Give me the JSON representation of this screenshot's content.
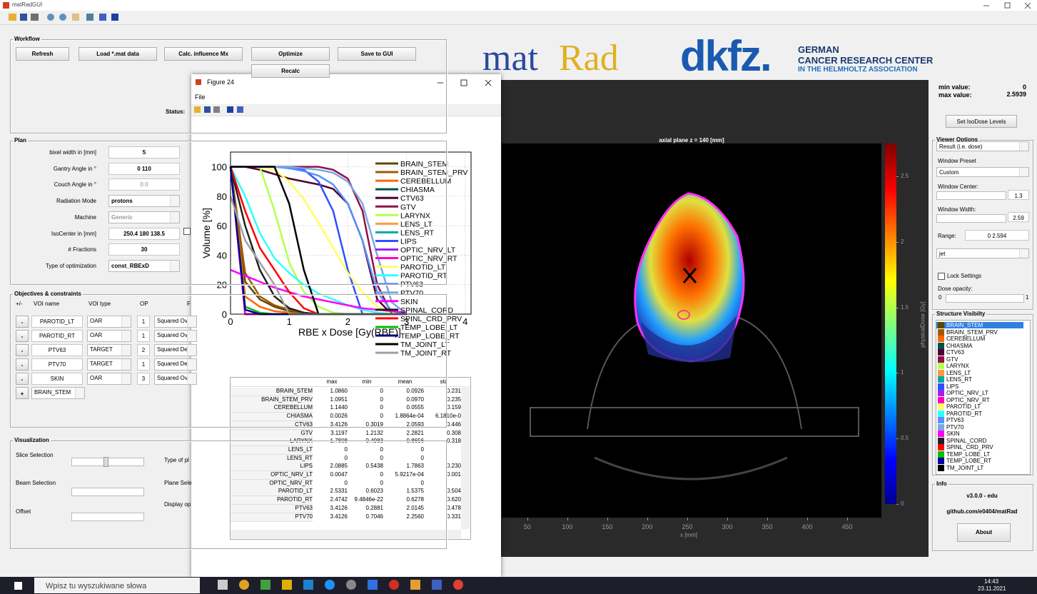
{
  "window": {
    "title": "matRadGUI"
  },
  "workflow": {
    "title": "Workflow",
    "buttons": [
      "Refresh",
      "Load *.mat data",
      "Calc. influence Mx",
      "Optimize",
      "Save to GUI",
      "Recalc"
    ],
    "status": "Status:"
  },
  "plan": {
    "title": "Plan",
    "fields": [
      {
        "label": "bixel width in [mm]",
        "value": "5"
      },
      {
        "label": "Gantry Angle in °",
        "value": "0 110"
      },
      {
        "label": "Couch Angle in °",
        "value": "0 0"
      },
      {
        "label": "Radiation Mode",
        "value": "protons"
      },
      {
        "label": "Machine",
        "value": "Generic"
      },
      {
        "label": "IsoCenter in [mm]",
        "value": "250.4 180 138.5"
      },
      {
        "label": "# Fractions",
        "value": "30"
      },
      {
        "label": "Type of optimization",
        "value": "const_RBExD"
      }
    ]
  },
  "objectives": {
    "title": "Objectives & constraints",
    "headers": [
      "+/-",
      "VOI name",
      "VOI type",
      "OP",
      "F"
    ],
    "rows": [
      [
        "-",
        "PAROTID_LT",
        "OAR",
        "1",
        "Squared Ove"
      ],
      [
        "-",
        "PAROTID_RT",
        "OAR",
        "1",
        "Squared Ove"
      ],
      [
        "-",
        "PTV63",
        "TARGET",
        "2",
        "Squared Dev"
      ],
      [
        "-",
        "PTV70",
        "TARGET",
        "1",
        "Squared Dev"
      ],
      [
        "-",
        "SKIN",
        "OAR",
        "3",
        "Squared Ove"
      ]
    ],
    "add": [
      "+",
      "BRAIN_STEM"
    ]
  },
  "visualization": {
    "title": "Visualization",
    "labels": [
      "Slice Selection",
      "Beam Selection",
      "Offset",
      "Type of pl",
      "Plane Sele",
      "Display op"
    ]
  },
  "logos": {
    "matrad_1": "mat",
    "matrad_2": "Rad",
    "dkfz": "dkfz.",
    "org_1": "GERMAN",
    "org_2": "CANCER RESEARCH CENTER",
    "org_3": "IN THE HELMHOLTZ ASSOCIATION"
  },
  "minmax": {
    "min_label": "min value:",
    "min": "0",
    "max_label": "max value:",
    "max": "2.5939",
    "button": "Set IsoDose Levels"
  },
  "viewer": {
    "title": "Viewer Options",
    "display": "Result (i.e. dose)",
    "preset_label": "Window Preset",
    "preset": "Custom",
    "center_label": "Window Center:",
    "center": "1.3",
    "width_label": "Window Width:",
    "width": "2.59",
    "range_label": "Range:",
    "range": "0   2.594",
    "colormap": "jet",
    "lock": "Lock Settings",
    "opacity_label": "Dose opacity:",
    "opacity_min": "0",
    "opacity_max": "1"
  },
  "structures": {
    "title": "Structure Visibilty"
  },
  "info": {
    "title": "Info",
    "version": "v3.0.0 - edu",
    "url": "github.com/e0404/matRad",
    "button": "About"
  },
  "image": {
    "title": "axial plane z = 140 [mm]",
    "xlabel": "x [mm]",
    "xlim": [
      18,
      491
    ],
    "xticks": [
      50,
      100,
      150,
      200,
      250,
      300,
      350,
      400,
      450
    ],
    "colorbar_label": "physicalDose [Gy]",
    "clim": [
      0,
      2.75
    ],
    "cticks": [
      0,
      0.5,
      1,
      1.5,
      2,
      2.5
    ]
  },
  "figure": {
    "title": "Figure 24",
    "menu": "File"
  },
  "chart_data": {
    "type": "line",
    "xlabel": "RBE x Dose [Gy(RBE)]",
    "ylabel": "Volume [%]",
    "xlim": [
      0,
      4.1
    ],
    "ylim": [
      0,
      110
    ],
    "xticks": [
      0,
      1,
      2,
      3,
      4
    ],
    "yticks": [
      0,
      20,
      40,
      60,
      80,
      100
    ],
    "grid": true,
    "x": [
      0,
      0.25,
      0.5,
      0.75,
      1,
      1.25,
      1.5,
      1.75,
      2,
      2.25,
      2.5,
      2.75,
      3
    ],
    "series": [
      {
        "name": "BRAIN_STEM",
        "color": "#5a4a00",
        "values": [
          100,
          22,
          10,
          5,
          2,
          1,
          0,
          0,
          0,
          0,
          0,
          0,
          0
        ]
      },
      {
        "name": "BRAIN_STEM_PRV",
        "color": "#a05a00",
        "values": [
          100,
          28,
          12,
          6,
          3,
          1,
          0,
          0,
          0,
          0,
          0,
          0,
          0
        ]
      },
      {
        "name": "CEREBELLUM",
        "color": "#ff6600",
        "values": [
          100,
          12,
          5,
          2,
          1,
          0,
          0,
          0,
          0,
          0,
          0,
          0,
          0
        ]
      },
      {
        "name": "CHIASMA",
        "color": "#00504a",
        "values": [
          100,
          0,
          0,
          0,
          0,
          0,
          0,
          0,
          0,
          0,
          0,
          0,
          0
        ]
      },
      {
        "name": "CTV63",
        "color": "#500030",
        "values": [
          100,
          100,
          98,
          95,
          92,
          90,
          88,
          85,
          75,
          50,
          10,
          0,
          0
        ]
      },
      {
        "name": "GTV",
        "color": "#90104a",
        "values": [
          100,
          100,
          100,
          100,
          100,
          100,
          100,
          98,
          92,
          70,
          20,
          0,
          0
        ]
      },
      {
        "name": "LARYNX",
        "color": "#b4ff50",
        "values": [
          100,
          100,
          100,
          70,
          35,
          15,
          5,
          1,
          0,
          0,
          0,
          0,
          0
        ]
      },
      {
        "name": "LENS_LT",
        "color": "#ff9a40",
        "values": [
          100,
          0,
          0,
          0,
          0,
          0,
          0,
          0,
          0,
          0,
          0,
          0,
          0
        ]
      },
      {
        "name": "LENS_RT",
        "color": "#00a8a8",
        "values": [
          100,
          0,
          0,
          0,
          0,
          0,
          0,
          0,
          0,
          0,
          0,
          0,
          0
        ]
      },
      {
        "name": "LIPS",
        "color": "#3050ff",
        "values": [
          100,
          100,
          100,
          100,
          100,
          98,
          90,
          70,
          30,
          0,
          0,
          0,
          0
        ]
      },
      {
        "name": "OPTIC_NRV_LT",
        "color": "#a020f0",
        "values": [
          100,
          0,
          0,
          0,
          0,
          0,
          0,
          0,
          0,
          0,
          0,
          0,
          0
        ]
      },
      {
        "name": "OPTIC_NRV_RT",
        "color": "#ff00c0",
        "values": [
          100,
          0,
          0,
          0,
          0,
          0,
          0,
          0,
          0,
          0,
          0,
          0,
          0
        ]
      },
      {
        "name": "PAROTID_LT",
        "color": "#ffff60",
        "values": [
          100,
          100,
          100,
          98,
          90,
          78,
          62,
          45,
          28,
          15,
          5,
          0,
          0
        ]
      },
      {
        "name": "PAROTID_RT",
        "color": "#30ffff",
        "values": [
          100,
          80,
          55,
          38,
          28,
          20,
          14,
          10,
          6,
          3,
          1,
          0,
          0
        ]
      },
      {
        "name": "PTV63",
        "color": "#5a90ff",
        "values": [
          100,
          100,
          100,
          100,
          99,
          97,
          94,
          88,
          75,
          50,
          15,
          2,
          0
        ]
      },
      {
        "name": "PTV70",
        "color": "#78a8e0",
        "values": [
          100,
          100,
          100,
          100,
          100,
          99,
          98,
          96,
          90,
          75,
          40,
          8,
          0
        ]
      },
      {
        "name": "SKIN",
        "color": "#ff00ff",
        "values": [
          30,
          26,
          22,
          18,
          15,
          12,
          10,
          8,
          6,
          4,
          3,
          2,
          1
        ]
      },
      {
        "name": "SPINAL_CORD",
        "color": "#202020",
        "values": [
          100,
          60,
          30,
          12,
          4,
          1,
          0,
          0,
          0,
          0,
          0,
          0,
          0
        ]
      },
      {
        "name": "SPINL_CRD_PRV",
        "color": "#ff0000",
        "values": [
          100,
          70,
          45,
          30,
          15,
          4,
          0,
          0,
          0,
          0,
          0,
          0,
          0
        ]
      },
      {
        "name": "TEMP_LOBE_LT",
        "color": "#00c000",
        "values": [
          100,
          5,
          1,
          0,
          0,
          0,
          0,
          0,
          0,
          0,
          0,
          0,
          0
        ]
      },
      {
        "name": "TEMP_LOBE_RT",
        "color": "#0000a0",
        "values": [
          100,
          3,
          0,
          0,
          0,
          0,
          0,
          0,
          0,
          0,
          0,
          0,
          0
        ]
      },
      {
        "name": "TM_JOINT_LT",
        "color": "#000000",
        "values": [
          100,
          100,
          100,
          100,
          75,
          30,
          0,
          0,
          0,
          0,
          0,
          0,
          0
        ]
      },
      {
        "name": "TM_JOINT_RT",
        "color": "#a0a0a0",
        "values": [
          80,
          50,
          35,
          20,
          0,
          0,
          0,
          0,
          0,
          0,
          0,
          0,
          0
        ]
      }
    ]
  },
  "table": {
    "headers": [
      "max",
      "min",
      "mean",
      "std"
    ],
    "rows": [
      [
        "1.0860",
        "0",
        "0.0926",
        "0.231"
      ],
      [
        "1.0951",
        "0",
        "0.0970",
        "0.235"
      ],
      [
        "1.1440",
        "0",
        "0.0555",
        "0.159"
      ],
      [
        "0.0026",
        "0",
        "1.8864e-04",
        "6.1810e-0"
      ],
      [
        "3.4126",
        "0.3019",
        "2.0593",
        "0.446"
      ],
      [
        "3.1197",
        "1.2132",
        "2.2821",
        "0.308"
      ],
      [
        "1.7808",
        "0.4983",
        "0.8656",
        "0.318"
      ],
      [
        "0",
        "0",
        "0"
      ],
      [
        "0",
        "0",
        "0"
      ],
      [
        "2.0885",
        "0.5438",
        "1.7863",
        "0.230"
      ],
      [
        "0.0047",
        "0",
        "5.9217e-04",
        "0.001"
      ],
      [
        "0",
        "0",
        "0"
      ],
      [
        "2.5331",
        "0.6023",
        "1.5375",
        "0.504"
      ],
      [
        "2.4742",
        "9.4846e-22",
        "0.6278",
        "0.620"
      ],
      [
        "3.4126",
        "0.2881",
        "2.0145",
        "0.478"
      ],
      [
        "3.4126",
        "0.7046",
        "2.2560",
        "0.331"
      ]
    ]
  },
  "taskbar": {
    "search": "Wpisz tu wyszukiwane słowa",
    "time": "14:43",
    "date": "23.11.2021"
  }
}
